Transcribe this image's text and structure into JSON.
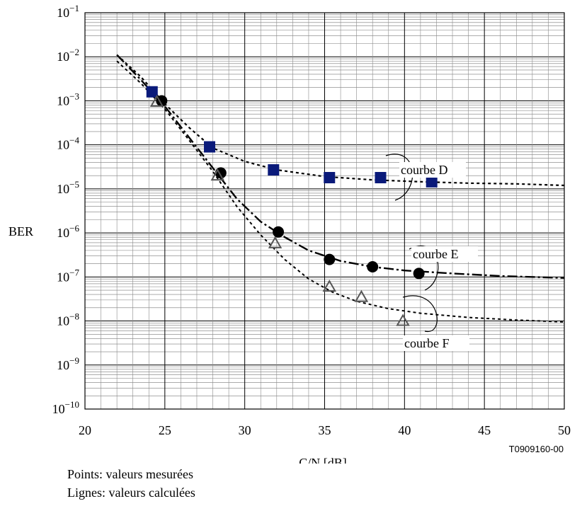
{
  "chart_data": {
    "type": "line",
    "xlabel": "C/N [dB]",
    "ylabel": "BER",
    "xlim": [
      20,
      50
    ],
    "ylim_exp": [
      -10,
      -1
    ],
    "y_scale": "log",
    "x_ticks": [
      20,
      25,
      30,
      35,
      40,
      45,
      50
    ],
    "y_tick_exponents": [
      -1,
      -2,
      -3,
      -4,
      -5,
      -6,
      -7,
      -8,
      -9,
      -10
    ],
    "y_tick_base": "10",
    "grid": true,
    "figure_id": "T0909160-00",
    "series": [
      {
        "name": "courbe D",
        "marker": "square",
        "color": "#0a1a7a",
        "points": [
          [
            24.2,
            0.0016
          ],
          [
            27.8,
            9e-05
          ],
          [
            31.8,
            2.7e-05
          ],
          [
            35.3,
            1.8e-05
          ],
          [
            38.5,
            1.8e-05
          ],
          [
            41.7,
            1.45e-05
          ]
        ],
        "curve": [
          [
            22.0,
            0.011
          ],
          [
            23.5,
            0.0035
          ],
          [
            25.0,
            0.00085
          ],
          [
            26.5,
            0.00025
          ],
          [
            28.0,
            8.5e-05
          ],
          [
            30.0,
            4.2e-05
          ],
          [
            32.0,
            2.7e-05
          ],
          [
            35.0,
            1.9e-05
          ],
          [
            38.0,
            1.6e-05
          ],
          [
            41.0,
            1.45e-05
          ],
          [
            44.0,
            1.35e-05
          ],
          [
            47.0,
            1.3e-05
          ],
          [
            50.0,
            1.2e-05
          ]
        ]
      },
      {
        "name": "courbe E",
        "marker": "circle",
        "color": "#000000",
        "points": [
          [
            24.8,
            0.001
          ],
          [
            28.5,
            2.3e-05
          ],
          [
            32.1,
            1.05e-06
          ],
          [
            35.3,
            2.5e-07
          ],
          [
            38.0,
            1.7e-07
          ],
          [
            40.9,
            1.2e-07
          ]
        ],
        "curve": [
          [
            22.0,
            0.011
          ],
          [
            23.5,
            0.003
          ],
          [
            25.0,
            0.00075
          ],
          [
            26.5,
            0.00015
          ],
          [
            28.0,
            3e-05
          ],
          [
            29.5,
            6e-06
          ],
          [
            31.0,
            1.8e-06
          ],
          [
            32.5,
            8e-07
          ],
          [
            34.0,
            4e-07
          ],
          [
            36.0,
            2.3e-07
          ],
          [
            38.0,
            1.7e-07
          ],
          [
            40.0,
            1.4e-07
          ],
          [
            43.0,
            1.2e-07
          ],
          [
            46.0,
            1.05e-07
          ],
          [
            50.0,
            9.5e-08
          ]
        ]
      },
      {
        "name": "courbe F",
        "marker": "triangle",
        "color": "#555555",
        "points": [
          [
            24.5,
            0.00095
          ],
          [
            28.3,
            2e-05
          ],
          [
            31.9,
            5.8e-07
          ],
          [
            35.3,
            6e-08
          ],
          [
            37.3,
            3.5e-08
          ],
          [
            39.9,
            1e-08
          ]
        ],
        "curve": [
          [
            22.0,
            0.008
          ],
          [
            23.5,
            0.0025
          ],
          [
            25.0,
            0.00065
          ],
          [
            26.5,
            0.00013
          ],
          [
            28.0,
            2.5e-05
          ],
          [
            29.5,
            4e-06
          ],
          [
            31.0,
            9e-07
          ],
          [
            32.5,
            2.5e-07
          ],
          [
            34.0,
            9e-08
          ],
          [
            35.5,
            4.5e-08
          ],
          [
            37.0,
            2.8e-08
          ],
          [
            39.0,
            1.9e-08
          ],
          [
            41.0,
            1.5e-08
          ],
          [
            44.0,
            1.2e-08
          ],
          [
            47.0,
            1.05e-08
          ],
          [
            50.0,
            9.5e-09
          ]
        ]
      }
    ]
  },
  "notes": {
    "line1": "Points: valeurs mesurées",
    "line2": "Lignes: valeurs calculées"
  }
}
